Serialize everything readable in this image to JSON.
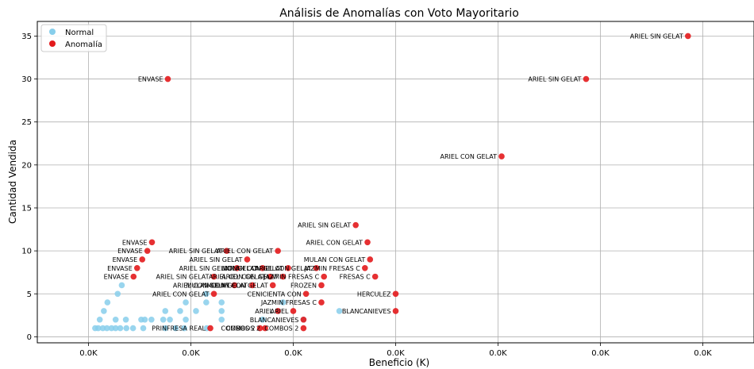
{
  "chart_data": {
    "type": "scatter",
    "title": "Análisis de Anomalías con Voto Mayoritario",
    "xlabel": "Beneficio (K)",
    "ylabel": "Cantidad Vendida",
    "xlim": [
      -0.7,
      0.7
    ],
    "ylim": [
      -0.7,
      36.7
    ],
    "x_ticks": [
      -0.6,
      -0.4,
      -0.2,
      0.0,
      0.2,
      0.4,
      0.6
    ],
    "x_tick_labels": [
      "0.0K",
      "0.0K",
      "0.0K",
      "0.0K",
      "0.0K",
      "0.0K",
      "0.0K"
    ],
    "y_ticks": [
      0,
      5,
      10,
      15,
      20,
      25,
      30,
      35
    ],
    "grid": true,
    "legend_position": "top-left",
    "colors": {
      "normal": "#87ceeb",
      "anomaly": "#e31a1c"
    },
    "series": [
      {
        "name": "Normal",
        "points": [
          {
            "x": -0.587,
            "y": 1
          },
          {
            "x": -0.581,
            "y": 1
          },
          {
            "x": -0.572,
            "y": 1
          },
          {
            "x": -0.564,
            "y": 1
          },
          {
            "x": -0.555,
            "y": 1
          },
          {
            "x": -0.547,
            "y": 1
          },
          {
            "x": -0.538,
            "y": 1
          },
          {
            "x": -0.526,
            "y": 1
          },
          {
            "x": -0.513,
            "y": 1
          },
          {
            "x": -0.493,
            "y": 1
          },
          {
            "x": -0.45,
            "y": 1
          },
          {
            "x": -0.43,
            "y": 1
          },
          {
            "x": -0.413,
            "y": 1
          },
          {
            "x": -0.369,
            "y": 1
          },
          {
            "x": -0.578,
            "y": 2
          },
          {
            "x": -0.547,
            "y": 2
          },
          {
            "x": -0.527,
            "y": 2
          },
          {
            "x": -0.497,
            "y": 2
          },
          {
            "x": -0.49,
            "y": 2
          },
          {
            "x": -0.477,
            "y": 2
          },
          {
            "x": -0.454,
            "y": 2
          },
          {
            "x": -0.441,
            "y": 2
          },
          {
            "x": -0.41,
            "y": 2
          },
          {
            "x": -0.34,
            "y": 2
          },
          {
            "x": -0.26,
            "y": 2
          },
          {
            "x": -0.18,
            "y": 2
          },
          {
            "x": -0.57,
            "y": 3
          },
          {
            "x": -0.45,
            "y": 3
          },
          {
            "x": -0.421,
            "y": 3
          },
          {
            "x": -0.39,
            "y": 3
          },
          {
            "x": -0.34,
            "y": 3
          },
          {
            "x": -0.11,
            "y": 3
          },
          {
            "x": -0.563,
            "y": 4
          },
          {
            "x": -0.41,
            "y": 4
          },
          {
            "x": -0.37,
            "y": 4
          },
          {
            "x": -0.34,
            "y": 4
          },
          {
            "x": -0.22,
            "y": 4
          },
          {
            "x": -0.543,
            "y": 5
          },
          {
            "x": -0.37,
            "y": 5
          },
          {
            "x": -0.535,
            "y": 6
          }
        ]
      },
      {
        "name": "Anomalía",
        "points": [
          {
            "x": 0.571,
            "y": 35,
            "label": "ARIEL SIN GELAT"
          },
          {
            "x": 0.372,
            "y": 30,
            "label": "ARIEL SIN GELAT"
          },
          {
            "x": 0.207,
            "y": 21,
            "label": "ARIEL CON GELAT"
          },
          {
            "x": -0.445,
            "y": 30,
            "label": "ENVASE"
          },
          {
            "x": -0.078,
            "y": 13,
            "label": "ARIEL SIN GELAT"
          },
          {
            "x": -0.055,
            "y": 11,
            "label": "ARIEL CON GELAT"
          },
          {
            "x": -0.476,
            "y": 11,
            "label": "ENVASE"
          },
          {
            "x": -0.485,
            "y": 10,
            "label": "ENVASE"
          },
          {
            "x": -0.33,
            "y": 10,
            "label": "ARIEL SIN GELAT"
          },
          {
            "x": -0.23,
            "y": 10,
            "label": "ARIEL CON GELAT"
          },
          {
            "x": -0.495,
            "y": 9,
            "label": "ENVASE"
          },
          {
            "x": -0.29,
            "y": 9,
            "label": "ARIEL SIN GELAT"
          },
          {
            "x": -0.05,
            "y": 9,
            "label": "MULAN CON GELAT"
          },
          {
            "x": -0.505,
            "y": 8,
            "label": "ENVASE"
          },
          {
            "x": -0.31,
            "y": 8,
            "label": "ARIEL SIN GELAT"
          },
          {
            "x": -0.26,
            "y": 8,
            "label": "CONGELAT"
          },
          {
            "x": -0.21,
            "y": 8,
            "label": "MULAN CON GELAT"
          },
          {
            "x": -0.155,
            "y": 8,
            "label": "ARIEL CON GELAT"
          },
          {
            "x": -0.06,
            "y": 8,
            "label": "JAZMIN FRESAS C"
          },
          {
            "x": -0.512,
            "y": 7,
            "label": "ENVASE"
          },
          {
            "x": -0.355,
            "y": 7,
            "label": "ARIEL SIN GELAT"
          },
          {
            "x": -0.245,
            "y": 7,
            "label": "ARIEL CON GELAT"
          },
          {
            "x": -0.22,
            "y": 7,
            "label": "ARIEL CON GELAT"
          },
          {
            "x": -0.04,
            "y": 7,
            "label": "FRESAS C"
          },
          {
            "x": -0.14,
            "y": 7,
            "label": "JAZMIN FRESAS C"
          },
          {
            "x": -0.315,
            "y": 6,
            "label": "ARIEL CON GELAT"
          },
          {
            "x": -0.28,
            "y": 6,
            "label": "MULAN CON GELAT"
          },
          {
            "x": -0.24,
            "y": 6,
            "label": "MULAN CON GELAT"
          },
          {
            "x": -0.145,
            "y": 6,
            "label": "FROZEN"
          },
          {
            "x": -0.355,
            "y": 5,
            "label": "ARIEL CON GELAT"
          },
          {
            "x": -0.175,
            "y": 5,
            "label": "CENICIENTA CON"
          },
          {
            "x": 0.0,
            "y": 5,
            "label": "HERCULEZ"
          },
          {
            "x": -0.145,
            "y": 4,
            "label": "JAZMIN FRESAS C"
          },
          {
            "x": -0.2,
            "y": 3,
            "label": "ARIEL"
          },
          {
            "x": -0.23,
            "y": 3,
            "label": "ARIEL"
          },
          {
            "x": 0.0,
            "y": 3,
            "label": "BLANCANIEVES"
          },
          {
            "x": -0.18,
            "y": 2,
            "label": "BLANCANIEVES"
          },
          {
            "x": -0.362,
            "y": 1,
            "label": "PRINFRESA REAL"
          },
          {
            "x": -0.265,
            "y": 1,
            "label": "COMBOS 2"
          },
          {
            "x": -0.255,
            "y": 1,
            "label": "COMBOS 2"
          },
          {
            "x": -0.18,
            "y": 1,
            "label": "COMBOS 2"
          }
        ]
      }
    ]
  }
}
